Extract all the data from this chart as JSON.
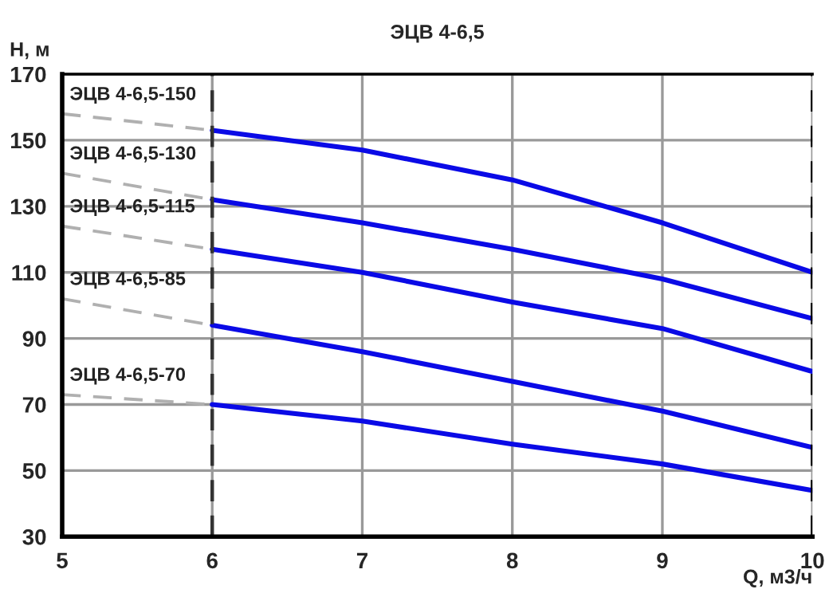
{
  "chart_data": {
    "type": "line",
    "title": "ЭЦВ 4-6,5",
    "xlabel": "Q, м3/ч",
    "ylabel": "Н, м",
    "xlim": [
      5,
      10
    ],
    "ylim": [
      30,
      170
    ],
    "xticks": [
      5,
      6,
      7,
      8,
      9,
      10
    ],
    "yticks": [
      30,
      50,
      70,
      90,
      110,
      130,
      150,
      170
    ],
    "grid": true,
    "legend": false,
    "marker": "none",
    "series": [
      {
        "name": "ЭЦВ 4-6,5-150",
        "color": "#b0b0b0",
        "line_style": "dashed",
        "x": [
          5,
          6
        ],
        "values": [
          158,
          153
        ]
      },
      {
        "color": "#0a0ae6",
        "line_style": "solid",
        "x": [
          6,
          7,
          8,
          9,
          10
        ],
        "values": [
          153,
          147,
          138,
          125,
          110
        ]
      },
      {
        "name": "ЭЦВ 4-6,5-130",
        "color": "#b0b0b0",
        "line_style": "dashed",
        "x": [
          5,
          6
        ],
        "values": [
          140,
          132
        ]
      },
      {
        "color": "#0a0ae6",
        "line_style": "solid",
        "x": [
          6,
          7,
          8,
          9,
          10
        ],
        "values": [
          132,
          125,
          117,
          108,
          96
        ]
      },
      {
        "name": "ЭЦВ 4-6,5-115",
        "color": "#b0b0b0",
        "line_style": "dashed",
        "x": [
          5,
          6
        ],
        "values": [
          124,
          117
        ]
      },
      {
        "color": "#0a0ae6",
        "line_style": "solid",
        "x": [
          6,
          7,
          8,
          9,
          10
        ],
        "values": [
          117,
          110,
          101,
          93,
          80
        ]
      },
      {
        "name": "ЭЦВ 4-6,5-85",
        "color": "#b0b0b0",
        "line_style": "dashed",
        "x": [
          5,
          6
        ],
        "values": [
          102,
          94
        ]
      },
      {
        "color": "#0a0ae6",
        "line_style": "solid",
        "x": [
          6,
          7,
          8,
          9,
          10
        ],
        "values": [
          94,
          86,
          77,
          68,
          57
        ]
      },
      {
        "name": "ЭЦВ 4-6,5-70",
        "color": "#b0b0b0",
        "line_style": "dashed",
        "x": [
          5,
          6
        ],
        "values": [
          73,
          70
        ]
      },
      {
        "color": "#0a0ae6",
        "line_style": "solid",
        "x": [
          6,
          7,
          8,
          9,
          10
        ],
        "values": [
          70,
          65,
          58,
          52,
          44
        ]
      }
    ],
    "ref_lines": [
      {
        "axis": "x",
        "value": 6,
        "color": "#333333",
        "line_style": "dashed"
      },
      {
        "axis": "x",
        "value": 10,
        "color": "#000000",
        "line_style": "dashed"
      }
    ]
  }
}
